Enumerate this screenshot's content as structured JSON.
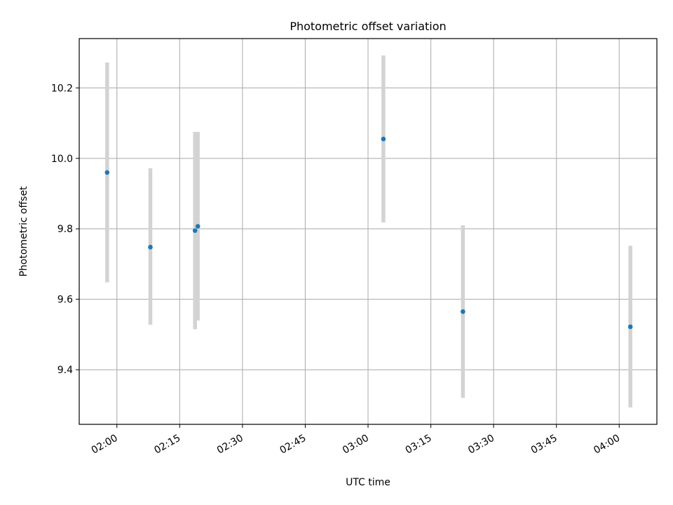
{
  "chart_data": {
    "type": "scatter",
    "title": "Photometric offset variation",
    "xlabel": "UTC time",
    "ylabel": "Photometric offset",
    "x_is_time": true,
    "xlim": [
      "01:51",
      "04:09"
    ],
    "ylim": [
      9.245,
      10.34
    ],
    "x_ticks": [
      "02:00",
      "02:15",
      "02:30",
      "02:45",
      "03:00",
      "03:15",
      "03:30",
      "03:45",
      "04:00"
    ],
    "y_ticks": [
      "9.4",
      "9.6",
      "9.8",
      "10.0",
      "10.2"
    ],
    "grid": true,
    "points": [
      {
        "x": "01:57:40",
        "y": 9.96,
        "err_low": 9.648,
        "err_high": 10.272
      },
      {
        "x": "02:08:00",
        "y": 9.748,
        "err_low": 9.528,
        "err_high": 9.972
      },
      {
        "x": "02:18:40",
        "y": 9.795,
        "err_low": 9.515,
        "err_high": 10.075
      },
      {
        "x": "02:19:20",
        "y": 9.807,
        "err_low": 9.54,
        "err_high": 10.075
      },
      {
        "x": "03:03:40",
        "y": 10.055,
        "err_low": 9.818,
        "err_high": 10.292
      },
      {
        "x": "03:22:40",
        "y": 9.565,
        "err_low": 9.32,
        "err_high": 9.81
      },
      {
        "x": "04:02:40",
        "y": 9.522,
        "err_low": 9.293,
        "err_high": 9.752
      }
    ],
    "marker_color": "#1f77b4",
    "errorbar_color": "#d3d3d3"
  }
}
